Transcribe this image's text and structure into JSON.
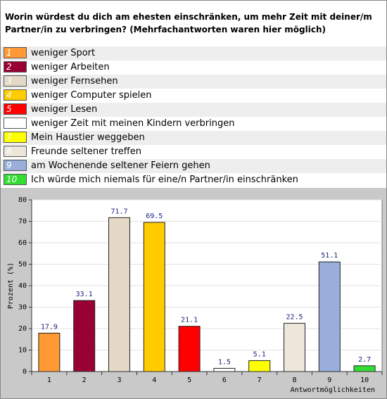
{
  "chart_data": {
    "type": "bar",
    "title": "Worin würdest du dich am ehesten einschränken, um mehr Zeit mit deiner/m Partner/in zu verbringen? (Mehrfachantworten waren hier möglich)",
    "answers": [
      "weniger Sport",
      "weniger Arbeiten",
      "weniger Fernsehen",
      "weniger Computer spielen",
      "weniger Lesen",
      "weniger Zeit mit meinen Kindern verbringen",
      "Mein Haustier weggeben",
      "Freunde seltener treffen",
      "am Wochenende seltener Feiern gehen",
      "Ich würde mich niemals für eine/n Partner/in einschränken"
    ],
    "categories": [
      "1",
      "2",
      "3",
      "4",
      "5",
      "6",
      "7",
      "8",
      "9",
      "10"
    ],
    "values": [
      17.9,
      33.1,
      71.7,
      69.5,
      21.1,
      1.5,
      5.1,
      22.5,
      51.1,
      2.7
    ],
    "colors": [
      "#ff9933",
      "#990033",
      "#e3d9c6",
      "#ffcc00",
      "#ff0000",
      "#ffffff",
      "#ffff00",
      "#ece6db",
      "#9aaedc",
      "#33dd33"
    ],
    "ylabel": "Prozent (%)",
    "xlabel": "Antwortmöglichkeiten",
    "ylim": [
      0,
      80
    ],
    "yticks": [
      0,
      10,
      20,
      30,
      40,
      50,
      60,
      70,
      80
    ],
    "grid": true
  }
}
